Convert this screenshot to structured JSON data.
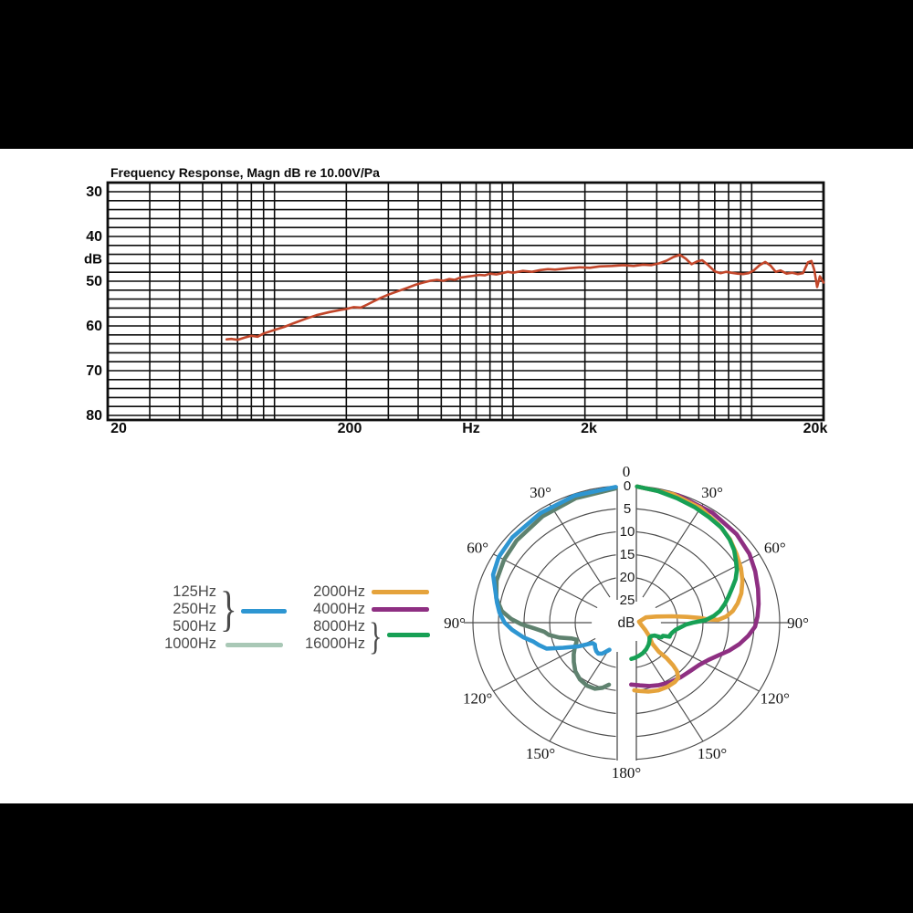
{
  "colors": {
    "letterbox": "#000000",
    "panel": "#ffffff",
    "fr_grid": "#0d0d0d",
    "fr_curve": "#c2462a",
    "polar_grid": "#4d4d4d",
    "blue": "#2e96d2",
    "sage_curve": "#5f826f",
    "sage_legend": "#a9c8b6",
    "orange": "#e5a33c",
    "purple": "#8e2f82",
    "green": "#17a055",
    "legend_text": "#4a4a4a"
  },
  "legend": {
    "left_labels": [
      "125Hz",
      "250Hz",
      "500Hz",
      "1000Hz"
    ],
    "right_labels": [
      "2000Hz",
      "4000Hz",
      "8000Hz",
      "16000Hz"
    ],
    "brace": "}"
  },
  "chart_data": [
    {
      "type": "line",
      "title": "Frequency Response, Magn dB re 10.00V/Pa",
      "xlabel": "Hz",
      "ylabel": "dB",
      "x_scale": "log",
      "x_range": [
        20,
        20000
      ],
      "x_tick_labels": [
        "20",
        "200",
        "Hz",
        "2k",
        "20k"
      ],
      "y_ticks": [
        30,
        40,
        50,
        60,
        70,
        80
      ],
      "y_unit_label": "dB",
      "y_inverted": true,
      "y_visible_range": [
        28,
        81
      ],
      "grid": "on",
      "grid_db_step": 2,
      "line_color": "#c2462a",
      "points": [
        [
          63,
          63.0
        ],
        [
          66,
          62.9
        ],
        [
          70,
          63.1
        ],
        [
          75,
          62.6
        ],
        [
          80,
          62.2
        ],
        [
          85,
          62.4
        ],
        [
          90,
          61.7
        ],
        [
          100,
          60.9
        ],
        [
          110,
          60.2
        ],
        [
          120,
          59.4
        ],
        [
          135,
          58.4
        ],
        [
          150,
          57.6
        ],
        [
          170,
          56.9
        ],
        [
          190,
          56.4
        ],
        [
          200,
          56.2
        ],
        [
          215,
          55.8
        ],
        [
          230,
          55.9
        ],
        [
          245,
          55.2
        ],
        [
          260,
          54.5
        ],
        [
          280,
          53.7
        ],
        [
          300,
          53.0
        ],
        [
          330,
          52.2
        ],
        [
          360,
          51.5
        ],
        [
          390,
          50.8
        ],
        [
          420,
          50.3
        ],
        [
          450,
          49.9
        ],
        [
          480,
          49.7
        ],
        [
          510,
          49.9
        ],
        [
          540,
          49.5
        ],
        [
          570,
          49.7
        ],
        [
          600,
          49.2
        ],
        [
          640,
          49.0
        ],
        [
          680,
          48.8
        ],
        [
          720,
          48.6
        ],
        [
          760,
          48.7
        ],
        [
          800,
          48.3
        ],
        [
          850,
          48.5
        ],
        [
          900,
          48.2
        ],
        [
          950,
          47.9
        ],
        [
          1000,
          48.1
        ],
        [
          1100,
          47.7
        ],
        [
          1200,
          47.9
        ],
        [
          1300,
          47.5
        ],
        [
          1400,
          47.3
        ],
        [
          1500,
          47.4
        ],
        [
          1700,
          47.1
        ],
        [
          1900,
          46.9
        ],
        [
          2100,
          47.0
        ],
        [
          2300,
          46.7
        ],
        [
          2600,
          46.6
        ],
        [
          2900,
          46.4
        ],
        [
          3200,
          46.6
        ],
        [
          3500,
          46.3
        ],
        [
          3800,
          46.4
        ],
        [
          4100,
          46.0
        ],
        [
          4400,
          45.4
        ],
        [
          4700,
          44.6
        ],
        [
          5000,
          44.1
        ],
        [
          5300,
          45.0
        ],
        [
          5600,
          46.2
        ],
        [
          5900,
          45.6
        ],
        [
          6200,
          45.3
        ],
        [
          6600,
          46.5
        ],
        [
          7000,
          47.8
        ],
        [
          7400,
          48.2
        ],
        [
          7800,
          47.9
        ],
        [
          8200,
          48.1
        ],
        [
          8700,
          48.3
        ],
        [
          9200,
          48.4
        ],
        [
          9700,
          48.2
        ],
        [
          10200,
          47.6
        ],
        [
          10800,
          46.4
        ],
        [
          11400,
          45.7
        ],
        [
          12000,
          46.5
        ],
        [
          12600,
          47.9
        ],
        [
          13200,
          47.6
        ],
        [
          14000,
          48.3
        ],
        [
          14800,
          48.1
        ],
        [
          15600,
          48.4
        ],
        [
          16400,
          48.2
        ],
        [
          17200,
          45.8
        ],
        [
          17800,
          45.5
        ],
        [
          18300,
          47.5
        ],
        [
          18800,
          51.3
        ],
        [
          19300,
          48.9
        ],
        [
          20000,
          50.3
        ]
      ]
    },
    {
      "type": "polar",
      "center_label": "dB",
      "radial_ticks": [
        0,
        5,
        10,
        15,
        20,
        25
      ],
      "radial_unit": "dB",
      "angle_step_deg": 30,
      "angle_top_label": "0",
      "angle_bottom_label": "180°",
      "angle_side_labels": [
        "30°",
        "60°",
        "90°",
        "120°",
        "150°"
      ],
      "series": [
        {
          "name": "125/250/500 Hz",
          "legend_labels": [
            "125Hz",
            "250Hz",
            "500Hz"
          ],
          "side": "left",
          "color": "#2e96d2",
          "points_angle_db": [
            [
              4,
              0.2
            ],
            [
              20,
              0.4
            ],
            [
              35,
              0.7
            ],
            [
              50,
              0.9
            ],
            [
              60,
              1.2
            ],
            [
              68,
              1.9
            ],
            [
              74,
              3.3
            ],
            [
              80,
              4.3
            ],
            [
              85,
              5.1
            ],
            [
              90,
              6.2
            ],
            [
              94,
              7.6
            ],
            [
              99,
              9.6
            ],
            [
              103,
              11.4
            ],
            [
              106,
              12.2
            ],
            [
              110,
              13.4
            ],
            [
              114,
              16.5
            ],
            [
              119,
              19.3
            ],
            [
              124,
              22.0
            ],
            [
              128,
              22.2
            ],
            [
              132,
              21.8
            ],
            [
              137,
              21.4
            ],
            [
              141,
              21.3
            ],
            [
              145,
              21.7
            ],
            [
              148,
              22.5
            ],
            [
              151,
              23.2
            ]
          ]
        },
        {
          "name": "1000 Hz",
          "legend_labels": [
            "1000Hz"
          ],
          "side": "left",
          "color": "#5f826f",
          "legend_color": "#a9c8b6",
          "points_angle_db": [
            [
              4,
              0.5
            ],
            [
              20,
              1.0
            ],
            [
              35,
              1.5
            ],
            [
              50,
              2.0
            ],
            [
              60,
              2.4
            ],
            [
              70,
              3.0
            ],
            [
              78,
              4.0
            ],
            [
              84,
              5.5
            ],
            [
              88,
              7.5
            ],
            [
              91,
              9.5
            ],
            [
              94,
              12.0
            ],
            [
              97,
              13.8
            ],
            [
              100,
              14.6
            ],
            [
              104,
              16.5
            ],
            [
              108,
              18.8
            ],
            [
              111,
              19.6
            ],
            [
              114,
              19.3
            ],
            [
              118,
              18.6
            ],
            [
              124,
              17.6
            ],
            [
              130,
              16.6
            ],
            [
              137,
              15.4
            ],
            [
              144,
              14.6
            ],
            [
              151,
              14.2
            ],
            [
              157,
              14.3
            ],
            [
              162,
              15.0
            ],
            [
              166,
              16.0
            ]
          ]
        },
        {
          "name": "2000 Hz",
          "legend_labels": [
            "2000Hz"
          ],
          "side": "right",
          "color": "#e5a33c",
          "points_angle_db": [
            [
              4,
              0.1
            ],
            [
              18,
              0.4
            ],
            [
              30,
              1.0
            ],
            [
              40,
              1.9
            ],
            [
              48,
              2.7
            ],
            [
              55,
              3.7
            ],
            [
              62,
              4.6
            ],
            [
              68,
              5.5
            ],
            [
              74,
              6.6
            ],
            [
              79,
              7.8
            ],
            [
              83,
              9.0
            ],
            [
              86,
              10.4
            ],
            [
              88,
              12.0
            ],
            [
              87.5,
              14.0
            ],
            [
              86,
              15.5
            ],
            [
              84,
              18.0
            ],
            [
              81,
              21.0
            ],
            [
              77,
              24.0
            ],
            [
              73,
              26.0
            ],
            [
              85,
              27.5
            ],
            [
              100,
              27.0
            ],
            [
              113,
              26.0
            ],
            [
              124,
              24.5
            ],
            [
              132,
              23.2
            ],
            [
              135,
              21.0
            ],
            [
              134.5,
              19.0
            ],
            [
              135.5,
              17.0
            ],
            [
              137,
              15.5
            ],
            [
              140,
              14.2
            ],
            [
              144,
              13.9
            ],
            [
              150,
              13.8
            ],
            [
              157,
              13.9
            ],
            [
              164,
              14.3
            ],
            [
              170,
              14.8
            ],
            [
              174,
              15.1
            ]
          ]
        },
        {
          "name": "4000 Hz",
          "legend_labels": [
            "4000Hz"
          ],
          "side": "right",
          "color": "#8e2f82",
          "points_angle_db": [
            [
              4,
              0.1
            ],
            [
              20,
              0.3
            ],
            [
              35,
              0.6
            ],
            [
              48,
              1.0
            ],
            [
              58,
              1.6
            ],
            [
              66,
              2.4
            ],
            [
              74,
              3.2
            ],
            [
              81,
              3.8
            ],
            [
              87,
              4.3
            ],
            [
              92,
              4.8
            ],
            [
              97,
              6.0
            ],
            [
              102,
              7.4
            ],
            [
              107,
              9.0
            ],
            [
              112,
              10.7
            ],
            [
              117,
              12.0
            ],
            [
              123,
              13.0
            ],
            [
              130,
              13.6
            ],
            [
              138,
              14.0
            ],
            [
              147,
              14.4
            ],
            [
              155,
              14.9
            ],
            [
              162,
              15.4
            ],
            [
              169,
              16.0
            ],
            [
              176,
              16.4
            ]
          ]
        },
        {
          "name": "8000/16000 Hz",
          "legend_labels": [
            "8000Hz",
            "16000Hz"
          ],
          "side": "right",
          "color": "#17a055",
          "points_angle_db": [
            [
              4,
              0.1
            ],
            [
              12,
              0.5
            ],
            [
              20,
              1.0
            ],
            [
              28,
              1.4
            ],
            [
              35,
              1.8
            ],
            [
              42,
              2.1
            ],
            [
              48,
              2.8
            ],
            [
              53,
              3.6
            ],
            [
              58,
              4.7
            ],
            [
              62,
              5.5
            ],
            [
              66,
              6.6
            ],
            [
              70,
              8.0
            ],
            [
              74,
              9.2
            ],
            [
              78,
              10.3
            ],
            [
              82,
              11.5
            ],
            [
              85,
              12.8
            ],
            [
              88,
              14.5
            ],
            [
              90,
              17.0
            ],
            [
              92,
              18.3
            ],
            [
              95,
              19.2
            ],
            [
              99,
              20.2
            ],
            [
              103,
              20.7
            ],
            [
              107,
              21.0
            ],
            [
              110,
              21.0
            ],
            [
              112,
              22.3
            ],
            [
              115,
              22.4
            ],
            [
              117,
              23.8
            ],
            [
              121,
              24.3
            ],
            [
              126,
              24.4
            ],
            [
              131,
              24.0
            ],
            [
              138,
              23.5
            ],
            [
              146,
              23.0
            ],
            [
              154,
              22.6
            ],
            [
              162,
              22.3
            ],
            [
              168,
              22.1
            ],
            [
              173,
              22.0
            ]
          ]
        }
      ]
    }
  ]
}
